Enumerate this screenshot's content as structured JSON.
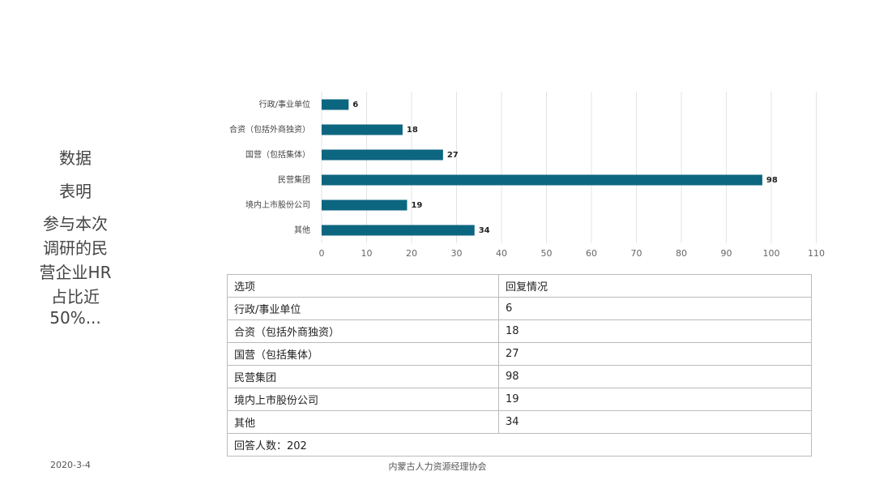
{
  "chart_data": {
    "type": "barh",
    "categories": [
      "行政/事业单位",
      "合资（包括外商独资）",
      "国营（包括集体）",
      "民营集团",
      "境内上市股份公司",
      "其他"
    ],
    "values": [
      6,
      18,
      27,
      98,
      19,
      34
    ],
    "color": "#0d6680",
    "xlim": [
      0,
      110
    ],
    "xticks": [
      0,
      10,
      20,
      30,
      40,
      50,
      60,
      70,
      80,
      90,
      100,
      110
    ],
    "grid": true
  },
  "sidebar": {
    "lines": [
      "数据",
      "表明",
      "参与本次",
      "调研的民",
      "营企业HR",
      "占比近",
      "50%..."
    ]
  },
  "table": {
    "header": [
      "选项",
      "回复情况"
    ],
    "footer": "回答人数：202"
  },
  "footer": {
    "date": "2020-3-4",
    "organization": "内蒙古人力资源经理协会"
  }
}
